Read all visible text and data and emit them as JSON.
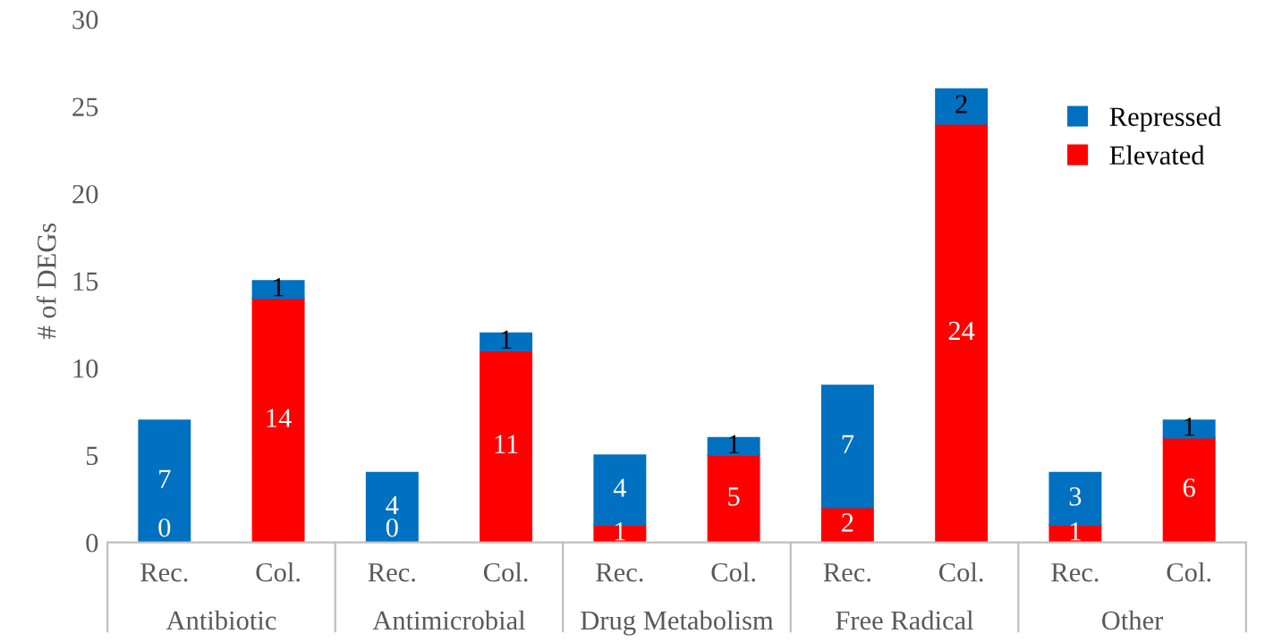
{
  "chart_data": {
    "type": "bar",
    "stacked": true,
    "ylabel": "# of DEGs",
    "categories": [
      "Rec.",
      "Col.",
      "Rec.",
      "Col.",
      "Rec.",
      "Col.",
      "Rec.",
      "Col.",
      "Rec.",
      "Col."
    ],
    "series": [
      {
        "name": "Elevated",
        "color": "#ff0000",
        "values": [
          0,
          14,
          0,
          11,
          1,
          5,
          2,
          24,
          1,
          6
        ]
      },
      {
        "name": "Repressed",
        "color": "#0070c0",
        "values": [
          7,
          1,
          4,
          1,
          4,
          1,
          7,
          2,
          3,
          1
        ]
      }
    ],
    "annotations": [
      "Antibiotic",
      "Antimicrobial",
      "Drug Metabolism",
      "Free Radical",
      "Other"
    ],
    "ylim": [
      0,
      30
    ],
    "yticks": [
      0,
      5,
      10,
      15,
      20,
      25,
      30
    ],
    "data_labels": true,
    "legend": "right",
    "grid": false
  }
}
